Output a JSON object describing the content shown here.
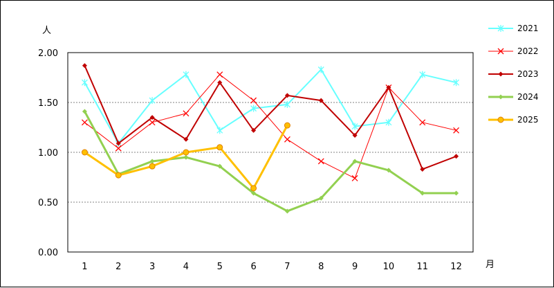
{
  "chart_data": {
    "type": "line",
    "y_unit_label": "人",
    "x_unit_label": "月",
    "categories": [
      "1",
      "2",
      "3",
      "4",
      "5",
      "6",
      "7",
      "8",
      "9",
      "10",
      "11",
      "12"
    ],
    "ylim": [
      0,
      2.0
    ],
    "y_ticks": [
      "0.00",
      "0.50",
      "1.00",
      "1.50",
      "2.00"
    ],
    "grid": true,
    "legend_position": "right",
    "series": [
      {
        "name": "2021",
        "color": "#66ffff",
        "marker": "asterisk",
        "width": 2,
        "values": [
          1.7,
          1.09,
          1.52,
          1.78,
          1.22,
          1.44,
          1.48,
          1.83,
          1.26,
          1.3,
          1.78,
          1.7
        ]
      },
      {
        "name": "2022",
        "color": "#ff0000",
        "marker": "x",
        "width": 1,
        "values": [
          1.3,
          1.04,
          1.3,
          1.39,
          1.78,
          1.52,
          1.13,
          0.91,
          0.74,
          1.65,
          1.3,
          1.22
        ]
      },
      {
        "name": "2023",
        "color": "#c00000",
        "marker": "diamond",
        "width": 2,
        "values": [
          1.87,
          1.09,
          1.35,
          1.13,
          1.7,
          1.22,
          1.57,
          1.52,
          1.17,
          1.65,
          0.83,
          0.96
        ]
      },
      {
        "name": "2024",
        "color": "#92d050",
        "marker": "diamond",
        "width": 3,
        "values": [
          1.41,
          0.78,
          0.91,
          0.95,
          0.86,
          0.59,
          0.41,
          0.54,
          0.91,
          0.82,
          0.59,
          0.59
        ]
      },
      {
        "name": "2025",
        "color": "#ffc000",
        "marker": "circle",
        "width": 3,
        "values": [
          1.0,
          0.77,
          0.86,
          1.0,
          1.05,
          0.64,
          1.27,
          null,
          null,
          null,
          null,
          null
        ]
      }
    ]
  }
}
